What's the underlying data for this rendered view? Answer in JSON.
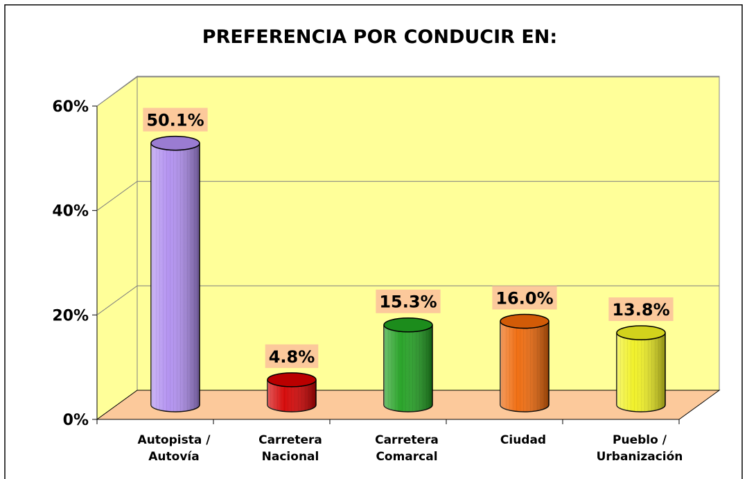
{
  "chart_data": {
    "type": "bar3d",
    "title": "PREFERENCIA POR CONDUCIR EN:",
    "categories": [
      [
        "Autopista /",
        "Autovía"
      ],
      [
        "Carretera",
        "Nacional"
      ],
      [
        "Carretera",
        "Comarcal"
      ],
      [
        "Ciudad"
      ],
      [
        "Pueblo /",
        "Urbanización"
      ]
    ],
    "values": [
      50.1,
      4.8,
      15.3,
      16.0,
      13.8
    ],
    "value_labels": [
      "50.1%",
      "4.8%",
      "15.3%",
      "16.0%",
      "13.8%"
    ],
    "colors": [
      "#b08ef0",
      "#d40000",
      "#20a020",
      "#f06808",
      "#f0f020"
    ],
    "ylim": [
      0,
      60
    ],
    "yticks": [
      {
        "value": 0,
        "label": "0%"
      },
      {
        "value": 20,
        "label": "20%"
      },
      {
        "value": 40,
        "label": "40%"
      },
      {
        "value": 60,
        "label": "60%"
      }
    ],
    "grid": true
  }
}
